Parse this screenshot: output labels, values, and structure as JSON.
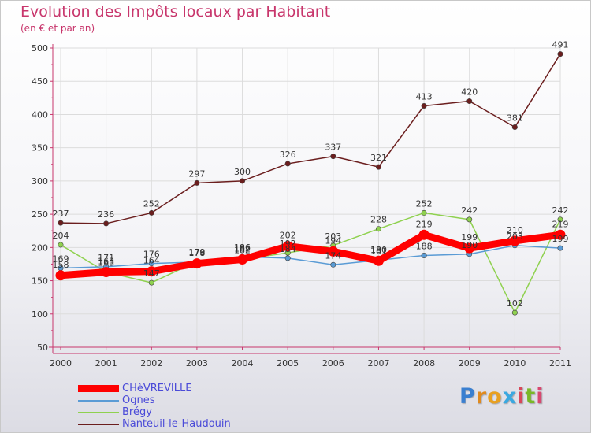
{
  "title": "Evolution des Impôts locaux par Habitant",
  "subtitle": "(en € et par an)",
  "brand": {
    "letters": [
      "P",
      "r",
      "o",
      "x",
      "i",
      "t",
      "i"
    ],
    "colors": [
      "#3a7fd0",
      "#e08a1e",
      "#e8a020",
      "#3aa8e0",
      "#d8485a",
      "#7ab828",
      "#d84870"
    ]
  },
  "chart_data": {
    "type": "line",
    "x": [
      "2000",
      "2001",
      "2002",
      "2003",
      "2004",
      "2005",
      "2006",
      "2007",
      "2008",
      "2009",
      "2010",
      "2011"
    ],
    "ylim": [
      50,
      500
    ],
    "yticks": [
      "50",
      "100",
      "150",
      "200",
      "250",
      "300",
      "350",
      "400",
      "450",
      "500"
    ],
    "grid": true,
    "legend_position": "bottom-left",
    "series": [
      {
        "name": "CHèVREVILLE",
        "color": "#ff0000",
        "values": [
          158,
          163,
          164,
          176,
          182,
          202,
          194,
          180,
          219,
          199,
          210,
          219
        ],
        "labels": [
          "158",
          "163",
          "164",
          "176",
          "182",
          "202",
          "194",
          "180",
          "219",
          "199",
          "210",
          "219"
        ]
      },
      {
        "name": "Ognes",
        "color": "#5a9bd5",
        "values": [
          169,
          171,
          176,
          178,
          186,
          184,
          174,
          181,
          188,
          190,
          203,
          199
        ],
        "labels": [
          "169",
          "171",
          "176",
          "178",
          "186",
          "184",
          "174",
          "181",
          "188",
          "190",
          "203",
          "199"
        ]
      },
      {
        "name": "Brégy",
        "color": "#8fd14f",
        "values": [
          204,
          163,
          147,
          179,
          182,
          192,
          203,
          228,
          252,
          242,
          102,
          242
        ],
        "labels": [
          "204",
          "163",
          "147",
          "179",
          "182",
          "192",
          "203",
          "228",
          "252",
          "242",
          "102",
          "242"
        ]
      },
      {
        "name": "Nanteuil-le-Haudouin",
        "color": "#6b1e1e",
        "values": [
          237,
          236,
          252,
          297,
          300,
          326,
          337,
          321,
          413,
          420,
          381,
          491
        ],
        "labels": [
          "237",
          "236",
          "252",
          "297",
          "300",
          "326",
          "337",
          "321",
          "413",
          "420",
          "381",
          "491"
        ]
      }
    ]
  }
}
